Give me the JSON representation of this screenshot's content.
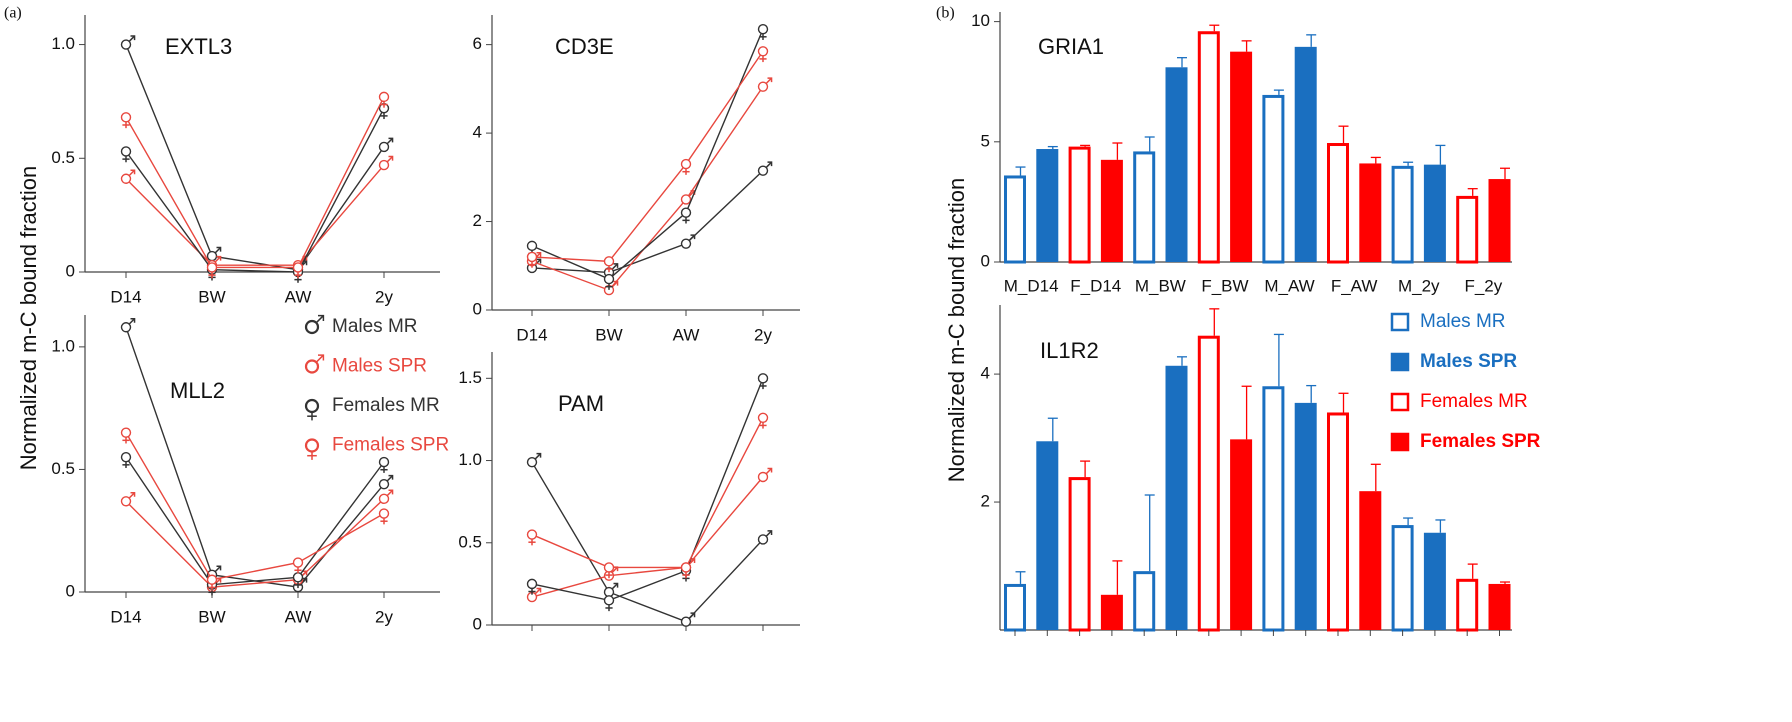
{
  "panels": [
    {
      "label": "(a)",
      "y_label": "Normalized m-C bound fraction"
    },
    {
      "label": "(b)",
      "y_label": "Normalized m-C bound fraction"
    }
  ],
  "chart_data": [
    {
      "type": "line",
      "title": "EXTL3",
      "categories": [
        "D14",
        "BW",
        "AW",
        "2y"
      ],
      "ylim": [
        0,
        1.13
      ],
      "yticks": [
        0,
        0.5,
        {
          "value": 1,
          "label": "1.0"
        }
      ],
      "series": [
        {
          "name": "Males MR",
          "color": "#333333",
          "marker": "male",
          "values": [
            1.0,
            0.07,
            0.01,
            0.55
          ]
        },
        {
          "name": "Males SPR",
          "color": "#e8483f",
          "marker": "male",
          "values": [
            0.41,
            0.03,
            0.03,
            0.47
          ]
        },
        {
          "name": "Females MR",
          "color": "#333333",
          "marker": "female",
          "values": [
            0.53,
            0.01,
            0.0,
            0.72
          ]
        },
        {
          "name": "Females SPR",
          "color": "#e8483f",
          "marker": "female",
          "values": [
            0.68,
            0.02,
            0.02,
            0.77
          ]
        }
      ]
    },
    {
      "type": "line",
      "title": "CD3E",
      "categories": [
        "D14",
        "BW",
        "AW",
        "2y"
      ],
      "ylim": [
        0,
        6.67
      ],
      "yticks": [
        0,
        2,
        4,
        6
      ],
      "series": [
        {
          "color": "#333333",
          "marker": "male",
          "values": [
            0.95,
            0.85,
            1.5,
            3.15
          ]
        },
        {
          "color": "#e8483f",
          "marker": "male",
          "values": [
            1.1,
            0.45,
            2.5,
            5.05
          ]
        },
        {
          "color": "#333333",
          "marker": "female",
          "values": [
            1.45,
            0.7,
            2.2,
            6.35
          ]
        },
        {
          "color": "#e8483f",
          "marker": "female",
          "values": [
            1.2,
            1.1,
            3.3,
            5.85
          ]
        }
      ]
    },
    {
      "type": "line",
      "title": "MLL2",
      "categories": [
        "D14",
        "BW",
        "AW",
        "2y"
      ],
      "ylim": [
        0,
        1.13
      ],
      "yticks": [
        0,
        0.5,
        {
          "value": 1,
          "label": "1.0"
        }
      ],
      "series": [
        {
          "color": "#333333",
          "marker": "male",
          "values": [
            1.08,
            0.07,
            0.02,
            0.44
          ]
        },
        {
          "color": "#e8483f",
          "marker": "male",
          "values": [
            0.37,
            0.02,
            0.05,
            0.38
          ]
        },
        {
          "color": "#333333",
          "marker": "female",
          "values": [
            0.55,
            0.03,
            0.06,
            0.53
          ]
        },
        {
          "color": "#e8483f",
          "marker": "female",
          "values": [
            0.65,
            0.05,
            0.12,
            0.32
          ]
        }
      ]
    },
    {
      "type": "line",
      "title": "PAM",
      "categories": [
        null,
        null,
        null,
        null
      ],
      "ylim": [
        0,
        1.66
      ],
      "yticks": [
        0,
        0.5,
        {
          "value": 1,
          "label": "1.0"
        },
        1.5
      ],
      "series": [
        {
          "color": "#333333",
          "marker": "male",
          "values": [
            0.99,
            0.2,
            0.02,
            0.52
          ]
        },
        {
          "color": "#e8483f",
          "marker": "male",
          "values": [
            0.17,
            0.3,
            0.35,
            0.9
          ]
        },
        {
          "color": "#333333",
          "marker": "female",
          "values": [
            0.25,
            0.15,
            0.33,
            1.5
          ]
        },
        {
          "color": "#e8483f",
          "marker": "female",
          "values": [
            0.55,
            0.35,
            0.35,
            1.26
          ]
        }
      ]
    },
    {
      "type": "bar",
      "title": "GRIA1",
      "x_labels": [
        "M_D14",
        "F_D14",
        "M_BW",
        "F_BW",
        "M_AW",
        "F_AW",
        "M_2y",
        "F_2y"
      ],
      "ylim": [
        0,
        10.4
      ],
      "yticks": [
        0,
        5,
        10
      ],
      "series": [
        {
          "name": "Males MR",
          "color": "#1a6fc0",
          "fill": "open",
          "values": [
            3.6,
            4.6,
            6.95,
            4.0
          ],
          "errors": [
            0.35,
            0.6,
            0.2,
            0.15
          ]
        },
        {
          "name": "Males SPR",
          "color": "#1a6fc0",
          "fill": "filled",
          "values": [
            4.7,
            8.1,
            8.95,
            4.05
          ],
          "errors": [
            0.1,
            0.4,
            0.5,
            0.8
          ]
        },
        {
          "name": "Females MR",
          "color": "#ff0000",
          "fill": "open",
          "values": [
            4.8,
            9.6,
            4.95,
            2.75
          ],
          "errors": [
            0.05,
            0.25,
            0.7,
            0.3
          ]
        },
        {
          "name": "Females SPR",
          "color": "#ff0000",
          "fill": "filled",
          "values": [
            4.25,
            8.75,
            4.1,
            3.45
          ],
          "errors": [
            0.7,
            0.45,
            0.25,
            0.45
          ]
        }
      ]
    },
    {
      "type": "bar",
      "title": "IL1R2",
      "ylim": [
        0,
        5.08
      ],
      "yticks": [
        2,
        4
      ],
      "series": [
        {
          "color": "#1a6fc0",
          "fill": "open",
          "values": [
            0.72,
            0.92,
            3.81,
            1.64
          ],
          "errors": [
            0.19,
            1.19,
            0.81,
            0.11
          ]
        },
        {
          "color": "#1a6fc0",
          "fill": "filled",
          "values": [
            2.95,
            4.13,
            3.55,
            1.52
          ],
          "errors": [
            0.36,
            0.14,
            0.27,
            0.2
          ]
        },
        {
          "color": "#ff0000",
          "fill": "open",
          "values": [
            2.39,
            4.6,
            3.4,
            0.8
          ],
          "errors": [
            0.25,
            0.42,
            0.3,
            0.23
          ]
        },
        {
          "color": "#ff0000",
          "fill": "filled",
          "values": [
            0.55,
            2.98,
            2.17,
            0.72
          ],
          "errors": [
            0.53,
            0.83,
            0.42,
            0.03
          ]
        }
      ]
    }
  ]
}
